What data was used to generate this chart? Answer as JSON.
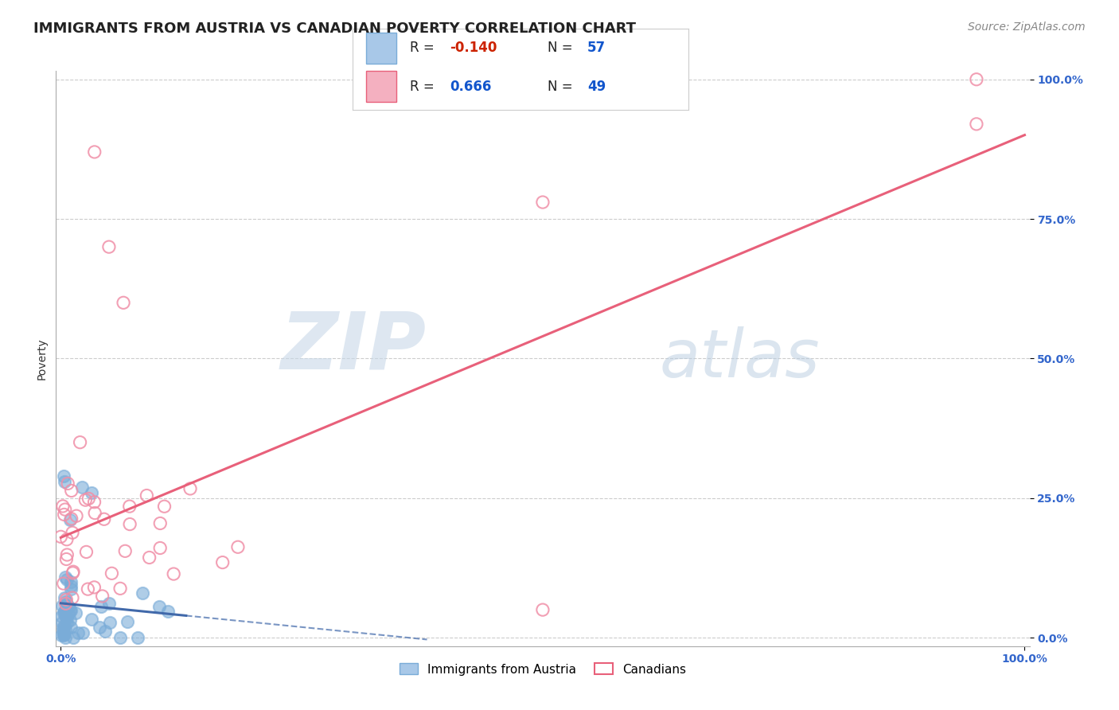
{
  "title": "IMMIGRANTS FROM AUSTRIA VS CANADIAN POVERTY CORRELATION CHART",
  "source_text": "Source: ZipAtlas.com",
  "ylabel": "Poverty",
  "watermark_zip": "ZIP",
  "watermark_atlas": "atlas",
  "ytick_labels": [
    "0.0%",
    "25.0%",
    "50.0%",
    "75.0%",
    "100.0%"
  ],
  "ytick_values": [
    0.0,
    0.25,
    0.5,
    0.75,
    1.0
  ],
  "xlim": [
    0.0,
    1.0
  ],
  "ylim": [
    0.0,
    1.0
  ],
  "austria_R": -0.14,
  "austria_N": 57,
  "canadian_R": 0.666,
  "canadian_N": 49,
  "austria_line_color": "#4169aa",
  "canadian_line_color": "#e8607a",
  "grid_color": "#cccccc",
  "background_color": "#ffffff",
  "scatter_color_austria": "#7aacd8",
  "scatter_color_canadian": "#f090a8",
  "scatter_alpha": 0.6,
  "scatter_size": 120,
  "title_fontsize": 13,
  "axis_label_fontsize": 10,
  "tick_fontsize": 10,
  "legend_fontsize": 12,
  "source_fontsize": 10,
  "legend_R_color_negative": "#cc2200",
  "legend_R_color_positive": "#1155cc",
  "legend_N_color": "#1155cc"
}
